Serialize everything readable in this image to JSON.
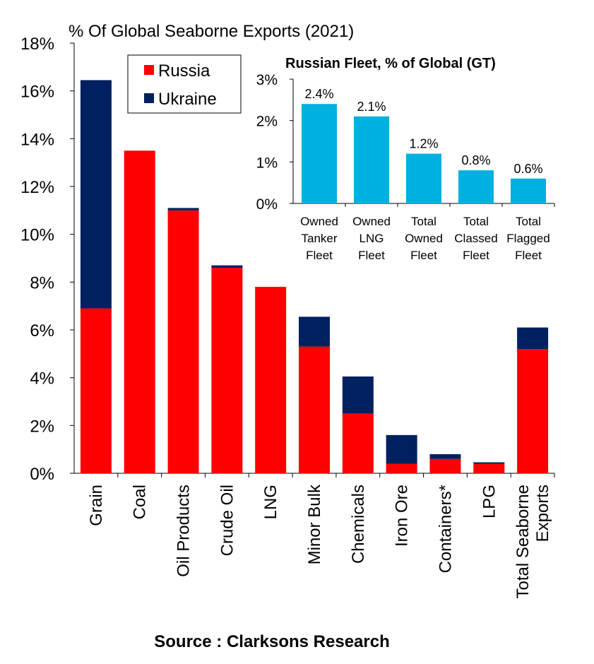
{
  "chart_data": [
    {
      "type": "bar",
      "stacked": true,
      "title": "% Of Global Seaborne Exports (2021)",
      "xlabel": "",
      "ylabel": "",
      "ylim": [
        0,
        18
      ],
      "yticks": [
        "0%",
        "2%",
        "4%",
        "6%",
        "8%",
        "10%",
        "12%",
        "14%",
        "16%",
        "18%"
      ],
      "categories": [
        "Grain",
        "Coal",
        "Oil Products",
        "Crude Oil",
        "LNG",
        "Minor Bulk",
        "Chemicals",
        "Iron Ore",
        "Containers*",
        "LPG",
        "Total Seaborne Exports"
      ],
      "series": [
        {
          "name": "Russia",
          "color": "#ff0000",
          "values": [
            6.9,
            13.5,
            11.0,
            8.6,
            7.8,
            5.3,
            2.5,
            0.4,
            0.6,
            0.4,
            5.2
          ]
        },
        {
          "name": "Ukraine",
          "color": "#002060",
          "values": [
            9.55,
            0,
            0.1,
            0.1,
            0,
            1.25,
            1.55,
            1.2,
            0.2,
            0.06,
            0.9
          ]
        }
      ],
      "legend": "top-left",
      "grid": false
    },
    {
      "type": "bar",
      "title": "Russian Fleet, % of Global (GT)",
      "ylim": [
        0,
        3
      ],
      "yticks": [
        "0%",
        "1%",
        "2%",
        "3%"
      ],
      "categories": [
        [
          "Owned",
          "Tanker",
          "Fleet"
        ],
        [
          "Owned",
          "LNG",
          "Fleet"
        ],
        [
          "Total",
          "Owned",
          "Fleet"
        ],
        [
          "Total",
          "Classed",
          "Fleet"
        ],
        [
          "Total",
          "Flagged",
          "Fleet"
        ]
      ],
      "values": [
        2.4,
        2.1,
        1.2,
        0.8,
        0.6
      ],
      "labels": [
        "2.4%",
        "2.1%",
        "1.2%",
        "0.8%",
        "0.6%"
      ],
      "color": "#00b0e0",
      "legend": "none"
    }
  ],
  "source": "Source : Clarksons Research"
}
